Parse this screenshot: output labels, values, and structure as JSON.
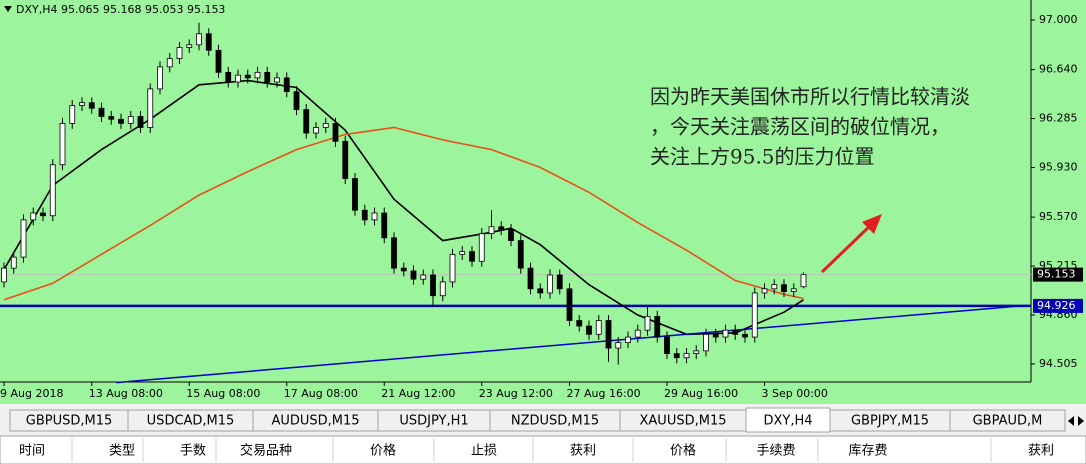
{
  "chart_data": {
    "type": "candlestick",
    "title": "DXY,H4  95.065 95.168 95.053 95.153",
    "categories": [
      "9 Aug 2018",
      null,
      null,
      null,
      null,
      null,
      null,
      null,
      null,
      "13 Aug 08:00",
      null,
      null,
      null,
      null,
      null,
      null,
      null,
      null,
      null,
      "15 Aug 08:00",
      null,
      null,
      null,
      null,
      null,
      null,
      null,
      null,
      null,
      "17 Aug 08:00",
      null,
      null,
      null,
      null,
      null,
      null,
      null,
      null,
      null,
      "21 Aug 12:00",
      null,
      null,
      null,
      null,
      null,
      null,
      null,
      null,
      null,
      "23 Aug 12:00",
      null,
      null,
      null,
      null,
      null,
      null,
      null,
      null,
      "27 Aug 16:00",
      null,
      null,
      null,
      null,
      null,
      null,
      null,
      null,
      null,
      "29 Aug 16:00",
      null,
      null,
      null,
      null,
      null,
      null,
      null,
      null,
      null,
      "3 Sep 00:00",
      null,
      null,
      null,
      null
    ],
    "open": [
      95.1,
      95.2,
      95.28,
      95.55,
      95.6,
      95.58,
      95.95,
      96.25,
      96.38,
      96.4,
      96.36,
      96.3,
      96.28,
      96.25,
      96.3,
      96.22,
      96.5,
      96.66,
      96.72,
      96.8,
      96.82,
      96.9,
      96.78,
      96.62,
      96.55,
      96.6,
      96.58,
      96.62,
      96.55,
      96.58,
      96.48,
      96.35,
      96.18,
      96.22,
      96.25,
      96.12,
      95.85,
      95.62,
      95.55,
      95.6,
      95.42,
      95.2,
      95.18,
      95.12,
      95.15,
      95.0,
      95.1,
      95.3,
      95.32,
      95.25,
      95.45,
      95.5,
      95.48,
      95.4,
      95.2,
      95.05,
      95.02,
      95.15,
      95.05,
      94.82,
      94.78,
      94.72,
      94.82,
      94.62,
      94.66,
      94.7,
      94.75,
      94.85,
      94.7,
      94.58,
      94.55,
      94.58,
      94.6,
      94.72,
      94.7,
      94.75,
      94.72,
      94.7,
      95.02,
      95.05,
      95.08,
      95.03,
      95.065
    ],
    "high": [
      95.24,
      95.32,
      95.59,
      95.64,
      95.64,
      95.99,
      96.29,
      96.42,
      96.44,
      96.44,
      96.4,
      96.34,
      96.32,
      96.34,
      96.34,
      96.54,
      96.7,
      96.76,
      96.84,
      96.86,
      96.98,
      96.94,
      96.82,
      96.66,
      96.64,
      96.64,
      96.66,
      96.66,
      96.62,
      96.62,
      96.52,
      96.39,
      96.26,
      96.29,
      96.29,
      96.16,
      95.89,
      95.66,
      95.64,
      95.64,
      95.46,
      95.24,
      95.22,
      95.19,
      95.19,
      95.14,
      95.34,
      95.36,
      95.36,
      95.49,
      95.62,
      95.54,
      95.52,
      95.44,
      95.24,
      95.09,
      95.19,
      95.19,
      95.09,
      94.86,
      94.82,
      94.86,
      94.86,
      94.7,
      94.74,
      94.79,
      94.92,
      94.89,
      94.74,
      94.62,
      94.62,
      94.64,
      94.76,
      94.76,
      94.79,
      94.79,
      94.76,
      95.06,
      95.09,
      95.12,
      95.12,
      95.09,
      95.168
    ],
    "low": [
      95.06,
      95.16,
      95.24,
      95.51,
      95.54,
      95.54,
      95.91,
      96.21,
      96.34,
      96.32,
      96.26,
      96.24,
      96.21,
      96.21,
      96.18,
      96.18,
      96.46,
      96.62,
      96.68,
      96.76,
      96.78,
      96.74,
      96.58,
      96.51,
      96.51,
      96.54,
      96.54,
      96.51,
      96.51,
      96.44,
      96.31,
      96.14,
      96.14,
      96.18,
      96.08,
      95.81,
      95.58,
      95.51,
      95.51,
      95.38,
      95.16,
      95.14,
      95.08,
      95.08,
      94.92,
      94.96,
      95.06,
      95.26,
      95.21,
      95.21,
      95.41,
      95.44,
      95.36,
      95.16,
      95.01,
      94.98,
      94.98,
      95.01,
      94.78,
      94.74,
      94.68,
      94.68,
      94.52,
      94.5,
      94.62,
      94.66,
      94.71,
      94.66,
      94.54,
      94.51,
      94.51,
      94.54,
      94.56,
      94.66,
      94.66,
      94.68,
      94.66,
      94.66,
      94.98,
      95.01,
      94.99,
      94.99,
      95.053
    ],
    "close": [
      95.2,
      95.28,
      95.55,
      95.6,
      95.58,
      95.95,
      96.25,
      96.38,
      96.4,
      96.36,
      96.3,
      96.28,
      96.25,
      96.3,
      96.22,
      96.5,
      96.66,
      96.72,
      96.8,
      96.82,
      96.9,
      96.78,
      96.62,
      96.55,
      96.6,
      96.58,
      96.62,
      96.55,
      96.58,
      96.48,
      96.35,
      96.18,
      96.22,
      96.25,
      96.12,
      95.85,
      95.62,
      95.55,
      95.6,
      95.42,
      95.2,
      95.18,
      95.12,
      95.15,
      95.0,
      95.1,
      95.3,
      95.32,
      95.25,
      95.45,
      95.5,
      95.48,
      95.4,
      95.2,
      95.05,
      95.02,
      95.15,
      95.05,
      94.82,
      94.78,
      94.72,
      94.82,
      94.62,
      94.66,
      94.7,
      94.75,
      94.85,
      94.7,
      94.58,
      94.55,
      94.58,
      94.6,
      94.72,
      94.7,
      94.75,
      94.72,
      94.7,
      95.02,
      95.05,
      95.08,
      95.03,
      95.05,
      95.153
    ],
    "up_color": "#ffffff",
    "down_color": "#000000",
    "series": [
      {
        "color": "#000000",
        "x": [
          0,
          5,
          10,
          15,
          20,
          25,
          30,
          35,
          40,
          45,
          50,
          52,
          55,
          60,
          65,
          70,
          75,
          80,
          82
        ],
        "values": [
          95.19,
          95.8,
          96.06,
          96.28,
          96.53,
          96.56,
          96.51,
          96.2,
          95.7,
          95.4,
          95.46,
          95.49,
          95.37,
          95.08,
          94.86,
          94.72,
          94.73,
          94.88,
          94.97
        ]
      },
      {
        "color": "#e8501a",
        "x": [
          0,
          5,
          10,
          15,
          20,
          25,
          30,
          35,
          40,
          45,
          50,
          55,
          60,
          65,
          70,
          75,
          80,
          82
        ],
        "values": [
          94.97,
          95.09,
          95.3,
          95.51,
          95.73,
          95.9,
          96.06,
          96.17,
          96.22,
          96.13,
          96.06,
          95.93,
          95.75,
          95.53,
          95.33,
          95.11,
          95.01,
          94.98
        ]
      },
      {
        "color": "#0000cc",
        "x": [
          11.5,
          104.9
        ],
        "values": [
          94.37,
          94.93
        ]
      }
    ],
    "hline": 94.926,
    "hline_color": "#0000b4",
    "current_price": 95.153,
    "ylim": [
      94.374,
      97.145
    ],
    "yticks": [
      {
        "value": 97.0,
        "label": "97.000"
      },
      {
        "value": 96.64,
        "label": "96.640"
      },
      96.285,
      {
        "value": 95.93,
        "label": "95.930"
      },
      {
        "value": 95.57,
        "label": "95.570"
      },
      95.215,
      {
        "value": 94.86,
        "label": "94.860"
      },
      94.505
    ],
    "annotations": [
      "因为昨天美国休市所以行情比较清淡",
      "，今天关注震荡区间的破位情况，",
      "关注上方95.5的压力位置"
    ],
    "background": "#9cf59c"
  },
  "tabs": [
    "GBPUSD,M15",
    "USDCAD,M15",
    "AUDUSD,M15",
    "USDJPY,H1",
    "NZDUSD,M15",
    "XAUUSD,M15",
    "DXY,H4",
    "GBPJPY,M15",
    "GBPAUD,M"
  ],
  "active_tab": 6,
  "columns": [
    "时间",
    "类型",
    "手数",
    "交易品种",
    "价格",
    "止损",
    "获利",
    "价格",
    "手续费",
    "库存费",
    "获利"
  ]
}
